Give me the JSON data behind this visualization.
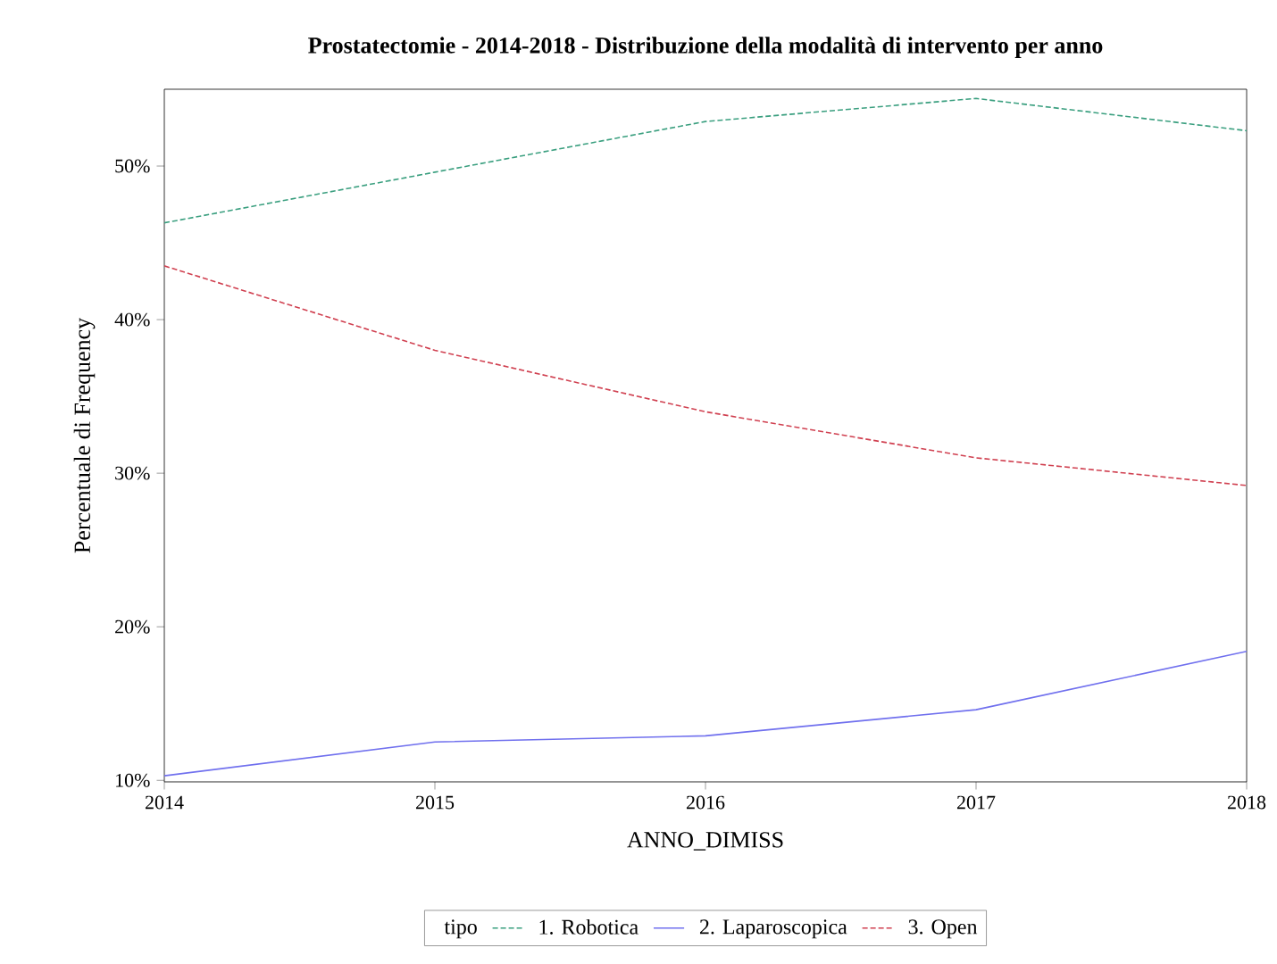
{
  "chart_data": {
    "type": "line",
    "title": "Prostatectomie - 2014-2018 - Distribuzione della modalità di intervento per anno",
    "xlabel": "ANNO_DIMISS",
    "ylabel": "Percentuale di Frequency",
    "legend_title": "tipo",
    "legend": "bottom",
    "grid": false,
    "marker": "none",
    "x": [
      2014,
      2015,
      2016,
      2017,
      2018
    ],
    "xlim": [
      2014,
      2018
    ],
    "xticks": [
      2014,
      2015,
      2016,
      2017,
      2018
    ],
    "ylim": [
      9.9,
      55
    ],
    "yticks": [
      {
        "value": 10,
        "label": "10%"
      },
      {
        "value": 20,
        "label": "20%"
      },
      {
        "value": 30,
        "label": "30%"
      },
      {
        "value": 40,
        "label": "40%"
      },
      {
        "value": 50,
        "label": "50%"
      }
    ],
    "series": [
      {
        "name": "1. Robotica",
        "color": "#3a9f7f",
        "line_style": "dashed",
        "values": [
          46.3,
          49.6,
          52.9,
          54.4,
          52.3
        ]
      },
      {
        "name": "2. Laparoscopica",
        "color": "#7070ee",
        "line_style": "solid",
        "values": [
          10.3,
          12.5,
          12.9,
          14.6,
          18.4
        ]
      },
      {
        "name": "3. Open",
        "color": "#d04050",
        "line_style": "dashed",
        "values": [
          43.5,
          38.0,
          34.0,
          31.0,
          29.2
        ]
      }
    ]
  }
}
